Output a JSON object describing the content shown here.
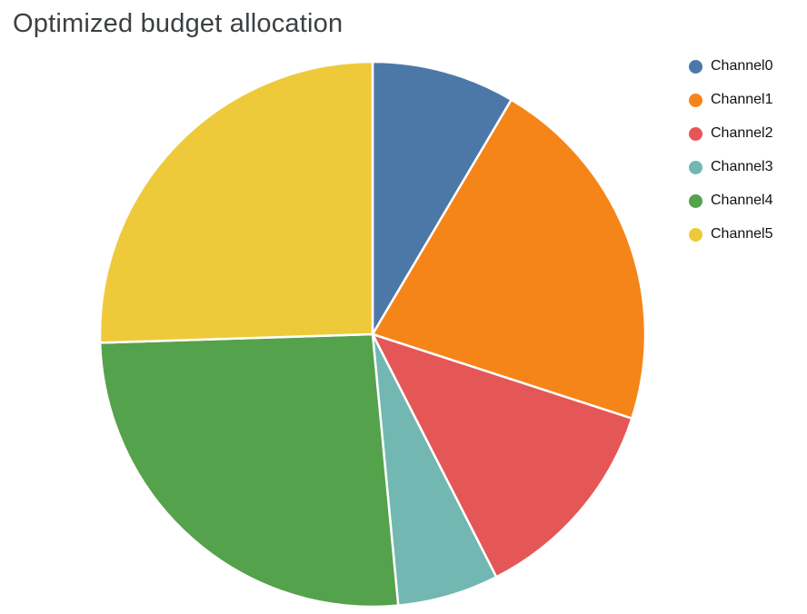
{
  "title": "Optimized budget allocation",
  "chart_data": {
    "type": "pie",
    "title": "Optimized budget allocation",
    "labels": [
      "Channel0",
      "Channel1",
      "Channel2",
      "Channel3",
      "Channel4",
      "Channel5"
    ],
    "values": [
      8.5,
      21.5,
      12.5,
      6.0,
      26.0,
      25.5
    ],
    "values_unit": "% of budget (estimated from slice angles)",
    "colors": [
      "#4C78A8",
      "#F58518",
      "#E45756",
      "#72B7B2",
      "#54A24B",
      "#EECA3B"
    ],
    "legend_position": "top-right",
    "start_angle_deg": 0,
    "direction": "clockwise",
    "slice_gap_color": "#ffffff"
  },
  "style": {
    "title_color": "#3c4043",
    "background": "#ffffff"
  }
}
